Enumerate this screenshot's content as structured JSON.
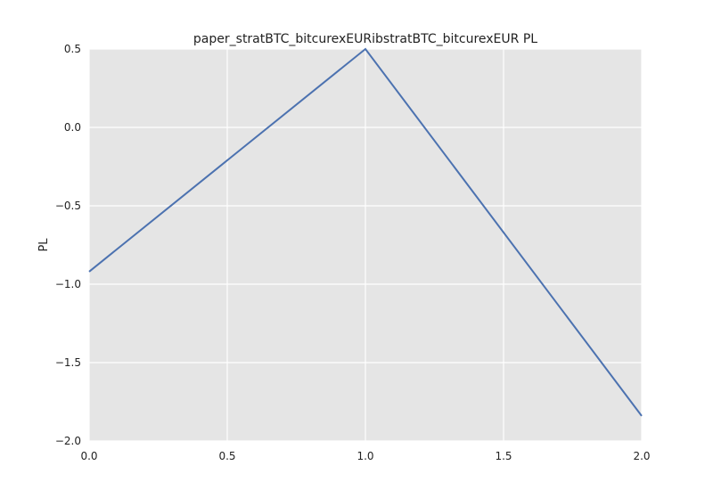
{
  "chart_data": {
    "type": "line",
    "title": "paper_stratBTC_bitcurexEURibstratBTC_bitcurexEUR PL",
    "xlabel": "",
    "ylabel": "PL",
    "xlim": [
      0.0,
      2.0
    ],
    "ylim": [
      -2.0,
      0.5
    ],
    "xticks": [
      0.0,
      0.5,
      1.0,
      1.5,
      2.0
    ],
    "xtick_labels": [
      "0.0",
      "0.5",
      "1.0",
      "1.5",
      "2.0"
    ],
    "yticks": [
      0.5,
      0.0,
      -0.5,
      -1.0,
      -1.5,
      -2.0
    ],
    "ytick_labels": [
      "0.5",
      "0.0",
      "−0.5",
      "−1.0",
      "−1.5",
      "−2.0"
    ],
    "grid": true,
    "series": [
      {
        "x": [
          0,
          1,
          2
        ],
        "values": [
          -0.92,
          0.5,
          -1.84
        ],
        "color": "#4C72B0"
      }
    ],
    "colors": {
      "plot_background": "#E5E5E5",
      "grid": "#FFFFFF"
    }
  }
}
